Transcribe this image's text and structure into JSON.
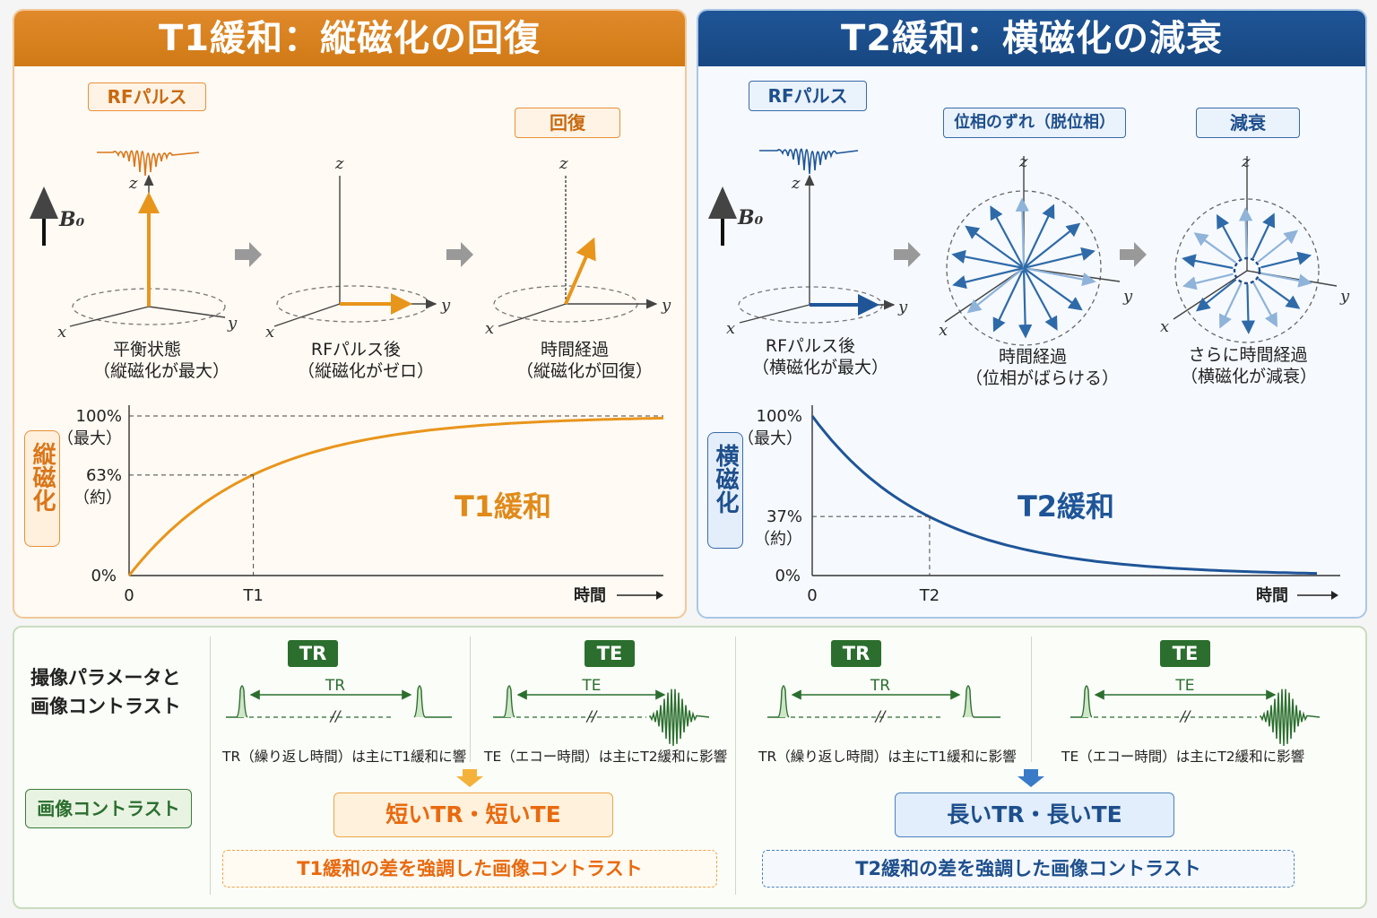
{
  "t1": {
    "title": "T1緩和：縦磁化の回復",
    "rf_label": "RFパルス",
    "recover_label": "回復",
    "b0": "B₀",
    "axis_x": "x",
    "axis_y": "y",
    "axis_z": "z",
    "states": [
      {
        "line1": "平衡状態",
        "line2": "（縦磁化が最大）"
      },
      {
        "line1": "RFパルス後",
        "line2": "（縦磁化がゼロ）"
      },
      {
        "line1": "時間経過",
        "line2": "（縦磁化が回復）"
      }
    ],
    "ylabel": "縦磁化",
    "curve_label": "T1緩和",
    "xlabel": "時間",
    "tick_100": "100%",
    "tick_100_sub": "（最大）",
    "tick_mid": "63%",
    "tick_mid_sub": "（約）",
    "tick_0": "0%",
    "x0": "0",
    "xmark": "T1"
  },
  "t2": {
    "title": "T2緩和：横磁化の減衰",
    "rf_label": "RFパルス",
    "dephase_label": "位相のずれ（脱位相）",
    "decay_label": "減衰",
    "b0": "B₀",
    "axis_x": "x",
    "axis_y": "y",
    "axis_z": "z",
    "states": [
      {
        "line1": "RFパルス後",
        "line2": "（横磁化が最大）"
      },
      {
        "line1": "時間経過",
        "line2": "（位相がばらける）"
      },
      {
        "line1": "さらに時間経過",
        "line2": "（横磁化が減衰）"
      }
    ],
    "ylabel": "横磁化",
    "curve_label": "T2緩和",
    "xlabel": "時間",
    "tick_100": "100%",
    "tick_100_sub": "（最大）",
    "tick_mid": "37%",
    "tick_mid_sub": "（約）",
    "tick_0": "0%",
    "x0": "0",
    "xmark": "T2"
  },
  "bottom": {
    "heading_line1": "撮像パラメータと",
    "heading_line2": "画像コントラスト",
    "contrast_tag": "画像コントラスト",
    "tr_tag": "TR",
    "te_tag": "TE",
    "tr_span": "TR",
    "te_span": "TE",
    "break_mark": "//",
    "left_tr_caption": "TR（繰り返し時間）は主にT1緩和に響",
    "left_te_caption": "TE（エコー時間）は主にT2緩和に影響",
    "right_tr_caption": "TR（繰り返し時間）は主にT1緩和に影響",
    "right_te_caption": "TE（エコー時間）は主にT2緩和に影響",
    "left_result": "短いTR・短いTE",
    "left_sub": "T1緩和の差を強調した画像コントラスト",
    "right_result": "長いTR・長いTE",
    "right_sub": "T2緩和の差を強調した画像コントラスト"
  },
  "colors": {
    "orange": "#e8951c",
    "orange_dark": "#d07a16",
    "blue": "#1f5597",
    "green": "#2b6e2e"
  },
  "chart_data": [
    {
      "type": "line",
      "title": "T1緩和",
      "xlabel": "時間",
      "ylabel": "縦磁化",
      "x": [
        0,
        0.5,
        1,
        1.5,
        2,
        3,
        4
      ],
      "series": [
        {
          "values": [
            0,
            39,
            63,
            78,
            86,
            95,
            98
          ]
        }
      ],
      "ylim": [
        0,
        100
      ],
      "annotations": [
        "63%（約）",
        "T1"
      ]
    },
    {
      "type": "line",
      "title": "T2緩和",
      "xlabel": "時間",
      "ylabel": "横磁化",
      "x": [
        0,
        0.5,
        1,
        1.5,
        2,
        3,
        4.3
      ],
      "series": [
        {
          "values": [
            100,
            61,
            37,
            22,
            14,
            5,
            1
          ]
        }
      ],
      "ylim": [
        0,
        100
      ],
      "annotations": [
        "37%（約）",
        "T2"
      ]
    }
  ]
}
